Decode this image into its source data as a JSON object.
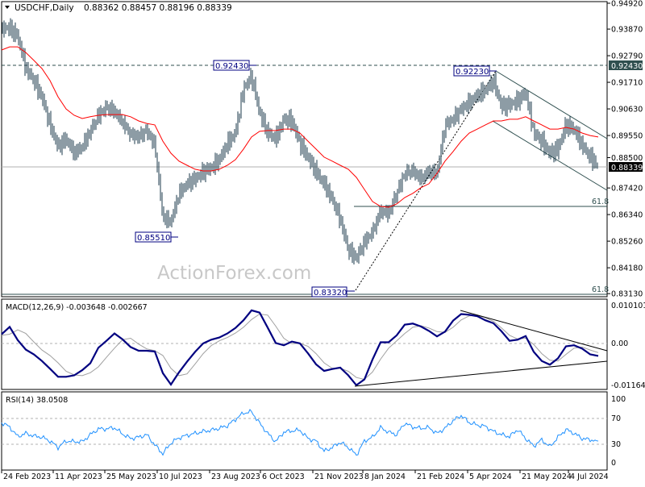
{
  "header": {
    "symbol": "USDCHF,Daily",
    "ohlc": "0.88362 0.88457 0.88196 0.88339",
    "dropdown_icon": "triangle-down-icon"
  },
  "watermark": "ActionForex.com",
  "colors": {
    "bars": "#1b3a4b",
    "ma": "#ff0000",
    "macd": "#000080",
    "signal": "#a0a0a0",
    "rsi": "#1e90ff",
    "current_price_bg": "#000000",
    "level_bg": "#2f4f4f"
  },
  "chart_data": [
    {
      "type": "line",
      "title": "USDCHF,Daily",
      "x_range": [
        "24 Feb 2023",
        "Jul 2024"
      ],
      "x_tick_labels": [
        "24 Feb 2023",
        "11 Apr 2023",
        "25 May 2023",
        "10 Jul 2023",
        "23 Aug 2023",
        "6 Oct 2023",
        "21 Nov 2023",
        "8 Jan 2024",
        "21 Feb 2024",
        "5 Apr 2024",
        "21 May 2024",
        "4 Jul 2024"
      ],
      "y_tick_labels": [
        "0.94920",
        "0.93870",
        "0.92790",
        "0.91710",
        "0.90630",
        "0.89550",
        "0.88500",
        "0.87420",
        "0.86340",
        "0.85260",
        "0.84180",
        "0.83130"
      ],
      "ylim": [
        0.8313,
        0.9492
      ],
      "last_bar": {
        "open": 0.88362,
        "high": 0.88457,
        "low": 0.88196,
        "close": 0.88339
      },
      "current_price": "0.88339",
      "series": [
        {
          "kind": "ohlc-bars",
          "values": [
            0.9391,
            0.9391,
            0.9358,
            0.9227,
            0.9178,
            0.9112,
            0.8998,
            0.8909,
            0.8942,
            0.8883,
            0.8909,
            0.8972,
            0.9037,
            0.907,
            0.9053,
            0.9008,
            0.8958,
            0.8949,
            0.8975,
            0.8916,
            0.8621,
            0.8605,
            0.872,
            0.8759,
            0.8779,
            0.8808,
            0.8824,
            0.8857,
            0.8923,
            0.8965,
            0.9145,
            0.9194,
            0.9047,
            0.8965,
            0.8942,
            0.9021,
            0.9014,
            0.8923,
            0.8867,
            0.8808,
            0.8759,
            0.8697,
            0.8615,
            0.849,
            0.8458,
            0.8523,
            0.8563,
            0.8648,
            0.8638,
            0.872,
            0.8801,
            0.8811,
            0.8779,
            0.8808,
            0.8801,
            0.8998,
            0.9021,
            0.9063,
            0.9089,
            0.9119,
            0.9139,
            0.9178,
            0.9073,
            0.908,
            0.9096,
            0.9129,
            0.8965,
            0.8932,
            0.8883,
            0.89,
            0.8998,
            0.8981,
            0.8916,
            0.8867,
            0.8834
          ]
        },
        {
          "kind": "moving-average",
          "values": [
            0.9302,
            0.9315,
            0.9315,
            0.9292,
            0.926,
            0.9227,
            0.9178,
            0.9112,
            0.9063,
            0.9037,
            0.9024,
            0.9031,
            0.9037,
            0.904,
            0.904,
            0.904,
            0.9031,
            0.9014,
            0.9004,
            0.8998,
            0.8932,
            0.8883,
            0.8851,
            0.8834,
            0.8818,
            0.8811,
            0.8811,
            0.8818,
            0.8834,
            0.8857,
            0.89,
            0.8949,
            0.8972,
            0.8975,
            0.8975,
            0.8981,
            0.8981,
            0.8965,
            0.8932,
            0.89,
            0.8867,
            0.8851,
            0.8834,
            0.8818,
            0.8785,
            0.8736,
            0.8687,
            0.8667,
            0.8664,
            0.8677,
            0.8703,
            0.872,
            0.8743,
            0.8759,
            0.8801,
            0.8851,
            0.889,
            0.8932,
            0.8965,
            0.8981,
            0.8998,
            0.9014,
            0.9014,
            0.9021,
            0.9021,
            0.9031,
            0.9014,
            0.8998,
            0.8981,
            0.8981,
            0.8988,
            0.8981,
            0.8965,
            0.8955,
            0.8949
          ]
        }
      ],
      "annotations": {
        "levels": [
          {
            "label": "0.92430",
            "value": 0.9243
          },
          {
            "label": "0.85510",
            "value": 0.8551
          },
          {
            "label": "0.83320",
            "value": 0.8332
          },
          {
            "label": "0.92230",
            "value": 0.9223
          }
        ],
        "resistance_line": "0.92430",
        "fib_labels": [
          "61.8",
          "61.8"
        ],
        "fib_values": [
          0.8667,
          0.8311
        ]
      }
    },
    {
      "type": "line",
      "title": "MACD(12,26,9) -0.003648 -0.002667",
      "y_tick_labels": [
        "0.010101",
        "0.00",
        "-0.011645"
      ],
      "ylim": [
        -0.011645,
        0.010101
      ],
      "series": [
        {
          "kind": "macd",
          "values": [
            0.0023,
            0.0043,
            0.0007,
            -0.0019,
            -0.0032,
            -0.005,
            -0.0071,
            -0.0093,
            -0.0093,
            -0.0089,
            -0.0075,
            -0.0056,
            -0.0014,
            0.0005,
            0.0025,
            0.0009,
            -0.0012,
            -0.0022,
            -0.0022,
            -0.0024,
            -0.0083,
            -0.0114,
            -0.0081,
            -0.0052,
            -0.0025,
            -0.0002,
            0.0008,
            0.0014,
            0.0025,
            0.004,
            0.0061,
            0.0088,
            0.0082,
            0.0041,
            -0.0001,
            -0.0007,
            0.0003,
            -0.0002,
            -0.0029,
            -0.0059,
            -0.0077,
            -0.0072,
            -0.0068,
            -0.0089,
            -0.0116,
            -0.01,
            -0.0046,
            0.0001,
            0.0001,
            0.002,
            0.0049,
            0.0052,
            0.0044,
            0.0032,
            0.0017,
            0.003,
            0.006,
            0.0078,
            0.0076,
            0.0072,
            0.0061,
            0.0053,
            0.0031,
            0.0005,
            0.0008,
            0.0018,
            -0.0025,
            -0.005,
            -0.006,
            -0.0043,
            -0.001,
            -0.0007,
            -0.0016,
            -0.0032,
            -0.0036
          ]
        },
        {
          "kind": "signal",
          "values": [
            0.002,
            0.0023,
            0.0035,
            0.0025,
            0.0002,
            -0.002,
            -0.0035,
            -0.0055,
            -0.0078,
            -0.0088,
            -0.009,
            -0.0082,
            -0.0066,
            -0.004,
            -0.0015,
            0.0008,
            0.0012,
            -0.0004,
            -0.0017,
            -0.0022,
            -0.0035,
            -0.007,
            -0.009,
            -0.0085,
            -0.0058,
            -0.003,
            -0.0008,
            0.0005,
            0.0014,
            0.0026,
            0.0042,
            0.0063,
            0.0078,
            0.0075,
            0.0045,
            0.0012,
            -0.0003,
            -0.0002,
            -0.001,
            -0.003,
            -0.0055,
            -0.007,
            -0.007,
            -0.0078,
            -0.0095,
            -0.01,
            -0.008,
            -0.0045,
            -0.0015,
            0.0005,
            0.0025,
            0.0042,
            0.0046,
            0.004,
            0.003,
            0.0028,
            0.0042,
            0.0062,
            0.0073,
            0.0074,
            0.0068,
            0.0058,
            0.004,
            0.002,
            0.001,
            0.0012,
            -0.0005,
            -0.003,
            -0.0048,
            -0.005,
            -0.0032,
            -0.0015,
            -0.0012,
            -0.002,
            -0.0027
          ]
        }
      ]
    },
    {
      "type": "line",
      "title": "RSI(14) 38.0508",
      "y_tick_labels": [
        "100",
        "70",
        "30",
        "0"
      ],
      "ylim": [
        0,
        100
      ],
      "levels": [
        70,
        30
      ],
      "series": [
        {
          "kind": "rsi",
          "values": [
            67,
            60,
            45,
            50,
            46,
            44,
            38,
            28,
            38,
            37,
            37,
            48,
            57,
            57,
            59,
            49,
            42,
            44,
            48,
            32,
            18,
            35,
            43,
            47,
            50,
            53,
            55,
            58,
            62,
            72,
            82,
            84,
            66,
            50,
            37,
            52,
            54,
            55,
            42,
            38,
            22,
            28,
            36,
            28,
            16,
            38,
            44,
            59,
            52,
            48,
            66,
            60,
            58,
            59,
            50,
            58,
            70,
            78,
            67,
            63,
            61,
            53,
            48,
            45,
            56,
            42,
            30,
            40,
            29,
            44,
            56,
            50,
            42,
            40,
            38
          ]
        }
      ]
    }
  ]
}
